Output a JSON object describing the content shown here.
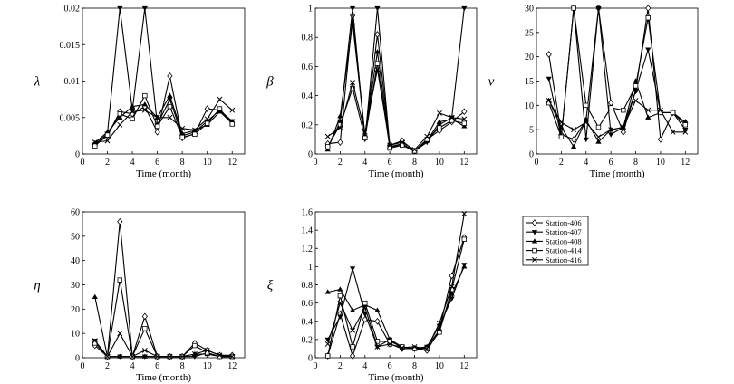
{
  "chart_data": [
    {
      "type": "line",
      "title": "",
      "ylabel": "λ",
      "xlabel": "Time (month)",
      "x": [
        1,
        2,
        3,
        4,
        5,
        6,
        7,
        8,
        9,
        10,
        11,
        12
      ],
      "xticks": [
        0,
        2,
        4,
        6,
        8,
        10,
        12
      ],
      "xlim": [
        0,
        13
      ],
      "ylim": [
        0,
        0.02
      ],
      "yticks": [
        0,
        0.005,
        0.01,
        0.015,
        0.02
      ],
      "ytick_labels": [
        "0",
        "0.005",
        "0.01",
        "0.015",
        "0.02"
      ],
      "series": [
        {
          "name": "Station-406",
          "marker": "diamond",
          "values": [
            0.0012,
            0.0025,
            0.0058,
            0.0055,
            0.0065,
            0.003,
            0.0107,
            0.0022,
            0.0028,
            0.0062,
            0.006,
            0.0043
          ]
        },
        {
          "name": "Station-407",
          "marker": "triangle-down",
          "values": [
            0.0013,
            0.0028,
            0.02,
            0.006,
            0.02,
            0.004,
            0.0075,
            0.0025,
            0.003,
            0.0045,
            0.006,
            0.0045
          ]
        },
        {
          "name": "Station-408",
          "marker": "triangle-up",
          "values": [
            0.0015,
            0.003,
            0.005,
            0.0065,
            0.0068,
            0.005,
            0.008,
            0.0028,
            0.0032,
            0.004,
            0.0058,
            0.0042
          ]
        },
        {
          "name": "Station-414",
          "marker": "square",
          "values": [
            0.0011,
            0.0026,
            0.0055,
            0.0048,
            0.008,
            0.0038,
            0.0065,
            0.0023,
            0.0027,
            0.0042,
            0.0062,
            0.0041
          ]
        },
        {
          "name": "Station-416",
          "marker": "x",
          "values": [
            0.0016,
            0.0018,
            0.004,
            0.0058,
            0.006,
            0.005,
            0.005,
            0.0035,
            0.0033,
            0.0048,
            0.0075,
            0.006
          ]
        }
      ]
    },
    {
      "type": "line",
      "title": "",
      "ylabel": "β",
      "xlabel": "Time (month)",
      "x": [
        1,
        2,
        3,
        4,
        5,
        6,
        7,
        8,
        9,
        10,
        11,
        12
      ],
      "xticks": [
        0,
        2,
        4,
        6,
        8,
        10,
        12
      ],
      "xlim": [
        0,
        13
      ],
      "ylim": [
        0,
        1
      ],
      "yticks": [
        0,
        0.2,
        0.4,
        0.6,
        0.8,
        1
      ],
      "ytick_labels": [
        "0",
        "0.2",
        "0.4",
        "0.6",
        "0.8",
        "1"
      ],
      "series": [
        {
          "name": "Station-406",
          "marker": "diamond",
          "values": [
            0.07,
            0.08,
            0.95,
            0.12,
            0.82,
            0.06,
            0.09,
            0.02,
            0.1,
            0.16,
            0.22,
            0.29
          ]
        },
        {
          "name": "Station-407",
          "marker": "triangle-down",
          "values": [
            0.04,
            0.22,
            1.0,
            0.1,
            1.0,
            0.05,
            0.06,
            0.02,
            0.08,
            0.2,
            0.25,
            1.0
          ]
        },
        {
          "name": "Station-408",
          "marker": "triangle-up",
          "values": [
            0.03,
            0.26,
            0.9,
            0.13,
            0.7,
            0.05,
            0.07,
            0.02,
            0.09,
            0.22,
            0.24,
            0.19
          ]
        },
        {
          "name": "Station-414",
          "marker": "square",
          "values": [
            0.05,
            0.2,
            0.45,
            0.11,
            0.62,
            0.04,
            0.06,
            0.02,
            0.1,
            0.18,
            0.23,
            0.21
          ]
        },
        {
          "name": "Station-416",
          "marker": "x",
          "values": [
            0.12,
            0.18,
            0.49,
            0.15,
            0.58,
            0.06,
            0.08,
            0.03,
            0.12,
            0.28,
            0.25,
            0.24
          ]
        }
      ]
    },
    {
      "type": "line",
      "title": "",
      "ylabel": "ν",
      "xlabel": "Time (month)",
      "x": [
        1,
        2,
        3,
        4,
        5,
        6,
        7,
        8,
        9,
        10,
        11,
        12
      ],
      "xticks": [
        0,
        2,
        4,
        6,
        8,
        10,
        12
      ],
      "xlim": [
        0,
        13
      ],
      "ylim": [
        0,
        30
      ],
      "yticks": [
        0,
        5,
        10,
        15,
        20,
        25,
        30
      ],
      "ytick_labels": [
        "0",
        "5",
        "10",
        "15",
        "20",
        "25",
        "30"
      ],
      "series": [
        {
          "name": "Station-406",
          "marker": "diamond",
          "values": [
            20.5,
            4,
            3,
            7,
            30,
            10.5,
            4.5,
            13,
            30,
            3,
            8.5,
            6.5
          ]
        },
        {
          "name": "Station-407",
          "marker": "triangle-down",
          "values": [
            15.5,
            3.5,
            30,
            3,
            30,
            4,
            5.5,
            13,
            21.5,
            8.5,
            8.5,
            5
          ]
        },
        {
          "name": "Station-408",
          "marker": "triangle-up",
          "values": [
            11,
            5.5,
            1.5,
            7,
            2.5,
            5,
            5.5,
            15,
            7.5,
            8.5,
            8.5,
            6.5
          ]
        },
        {
          "name": "Station-414",
          "marker": "square",
          "values": [
            10.5,
            3.5,
            30,
            10,
            5.5,
            9.5,
            9,
            14,
            28,
            8.5,
            8.5,
            6
          ]
        },
        {
          "name": "Station-416",
          "marker": "x",
          "values": [
            11,
            6.5,
            5,
            6.5,
            3.5,
            5,
            5.5,
            11,
            9,
            9,
            4.5,
            4.5
          ]
        }
      ]
    },
    {
      "type": "line",
      "title": "",
      "ylabel": "η",
      "xlabel": "Time (month)",
      "x": [
        1,
        2,
        3,
        4,
        5,
        6,
        7,
        8,
        9,
        10,
        11,
        12
      ],
      "xticks": [
        0,
        2,
        4,
        6,
        8,
        10,
        12
      ],
      "xlim": [
        0,
        13
      ],
      "ylim": [
        0,
        60
      ],
      "yticks": [
        0,
        10,
        20,
        30,
        40,
        50,
        60
      ],
      "ytick_labels": [
        "0",
        "10",
        "20",
        "30",
        "40",
        "50",
        "60"
      ],
      "series": [
        {
          "name": "Station-406",
          "marker": "diamond",
          "values": [
            5,
            0.5,
            56,
            0.5,
            17,
            0.5,
            0.5,
            0.5,
            6,
            3,
            1,
            1
          ]
        },
        {
          "name": "Station-407",
          "marker": "triangle-down",
          "values": [
            7,
            0.5,
            0.5,
            0.5,
            0.5,
            0.5,
            0.5,
            0.5,
            0.5,
            2,
            0.5,
            0.5
          ]
        },
        {
          "name": "Station-408",
          "marker": "triangle-up",
          "values": [
            25,
            0.5,
            0.5,
            0.5,
            0.5,
            0.5,
            0.5,
            0.5,
            1.5,
            1.5,
            0.5,
            0.5
          ]
        },
        {
          "name": "Station-414",
          "marker": "square",
          "values": [
            6,
            0.5,
            32,
            0.5,
            12,
            0.5,
            0.5,
            0.5,
            5,
            2,
            0.5,
            0.5
          ]
        },
        {
          "name": "Station-416",
          "marker": "x",
          "values": [
            7,
            0.5,
            10,
            0.5,
            3,
            0.5,
            0.5,
            0.5,
            1.5,
            3,
            1,
            0.5
          ]
        }
      ]
    },
    {
      "type": "line",
      "title": "",
      "ylabel": "ξ",
      "xlabel": "Time (month)",
      "x": [
        1,
        2,
        3,
        4,
        5,
        6,
        7,
        8,
        9,
        10,
        11,
        12
      ],
      "xticks": [
        0,
        2,
        4,
        6,
        8,
        10,
        12
      ],
      "xlim": [
        0,
        13
      ],
      "ylim": [
        0,
        1.6
      ],
      "yticks": [
        0,
        0.2,
        0.4,
        0.6,
        0.8,
        1,
        1.2,
        1.4,
        1.6
      ],
      "ytick_labels": [
        "0",
        "0.2",
        "0.4",
        "0.6",
        "0.8",
        "1",
        "1.2",
        "1.4",
        "1.6"
      ],
      "series": [
        {
          "name": "Station-406",
          "marker": "diamond",
          "values": [
            0.02,
            0.48,
            0.02,
            0.42,
            0.4,
            0.15,
            0.1,
            0.1,
            0.08,
            0.3,
            0.9,
            1.32
          ]
        },
        {
          "name": "Station-407",
          "marker": "triangle-down",
          "values": [
            0.2,
            0.45,
            0.98,
            0.48,
            0.12,
            0.2,
            0.1,
            0.1,
            0.12,
            0.35,
            0.65,
            1.02
          ]
        },
        {
          "name": "Station-408",
          "marker": "triangle-up",
          "values": [
            0.72,
            0.75,
            0.52,
            0.58,
            0.52,
            0.2,
            0.12,
            0.1,
            0.12,
            0.3,
            0.7,
            1.0
          ]
        },
        {
          "name": "Station-414",
          "marker": "square",
          "values": [
            0.02,
            0.68,
            0.12,
            0.6,
            0.18,
            0.18,
            0.12,
            0.1,
            0.1,
            0.28,
            0.75,
            1.3
          ]
        },
        {
          "name": "Station-416",
          "marker": "x",
          "values": [
            0.15,
            0.6,
            0.3,
            0.55,
            0.12,
            0.15,
            0.11,
            0.12,
            0.1,
            0.38,
            0.78,
            1.58
          ]
        }
      ]
    }
  ],
  "legend": {
    "position": "right",
    "entries": [
      "Station-406",
      "Station-407",
      "Station-408",
      "Station-414",
      "Station-416"
    ]
  }
}
